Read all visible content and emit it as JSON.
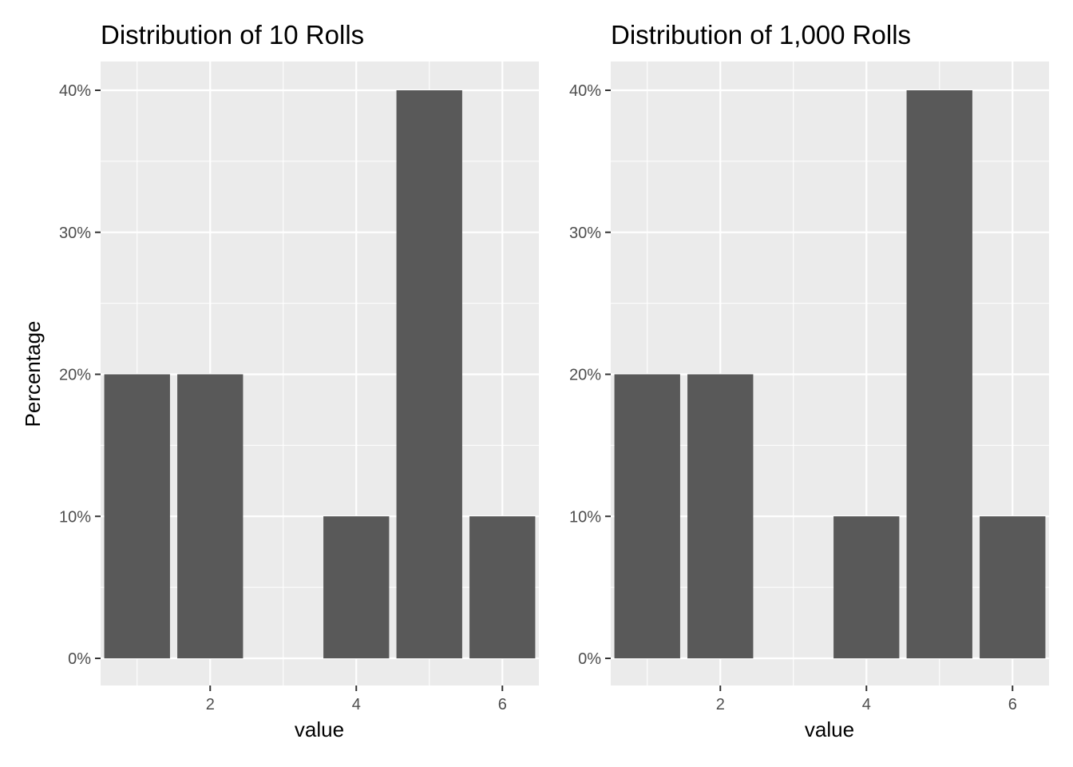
{
  "chart_data": [
    {
      "type": "bar",
      "title": "Distribution of 10 Rolls",
      "xlabel": "value",
      "ylabel": "Percentage",
      "x": [
        1,
        2,
        4,
        5,
        6
      ],
      "values": [
        20,
        20,
        10,
        40,
        10
      ],
      "value_unit": "%",
      "xlim": [
        0.5,
        6.5
      ],
      "ylim": [
        0,
        40
      ],
      "x_ticks": [
        2,
        4,
        6
      ],
      "x_tick_labels": [
        "2",
        "4",
        "6"
      ],
      "y_ticks": [
        0,
        10,
        20,
        30,
        40
      ],
      "y_tick_labels": [
        "0%",
        "10%",
        "20%",
        "30%",
        "40%"
      ],
      "grid": true,
      "legend": "none",
      "colors": {
        "bar": "#595959",
        "panel": "#ebebeb",
        "grid": "#ffffff"
      }
    },
    {
      "type": "bar",
      "title": "Distribution of 1,000 Rolls",
      "xlabel": "value",
      "ylabel": "",
      "x": [
        1,
        2,
        4,
        5,
        6
      ],
      "values": [
        20,
        20,
        10,
        40,
        10
      ],
      "value_unit": "%",
      "xlim": [
        0.5,
        6.5
      ],
      "ylim": [
        0,
        40
      ],
      "x_ticks": [
        2,
        4,
        6
      ],
      "x_tick_labels": [
        "2",
        "4",
        "6"
      ],
      "y_ticks": [
        0,
        10,
        20,
        30,
        40
      ],
      "y_tick_labels": [
        "0%",
        "10%",
        "20%",
        "30%",
        "40%"
      ],
      "grid": true,
      "legend": "none",
      "colors": {
        "bar": "#595959",
        "panel": "#ebebeb",
        "grid": "#ffffff"
      }
    }
  ]
}
